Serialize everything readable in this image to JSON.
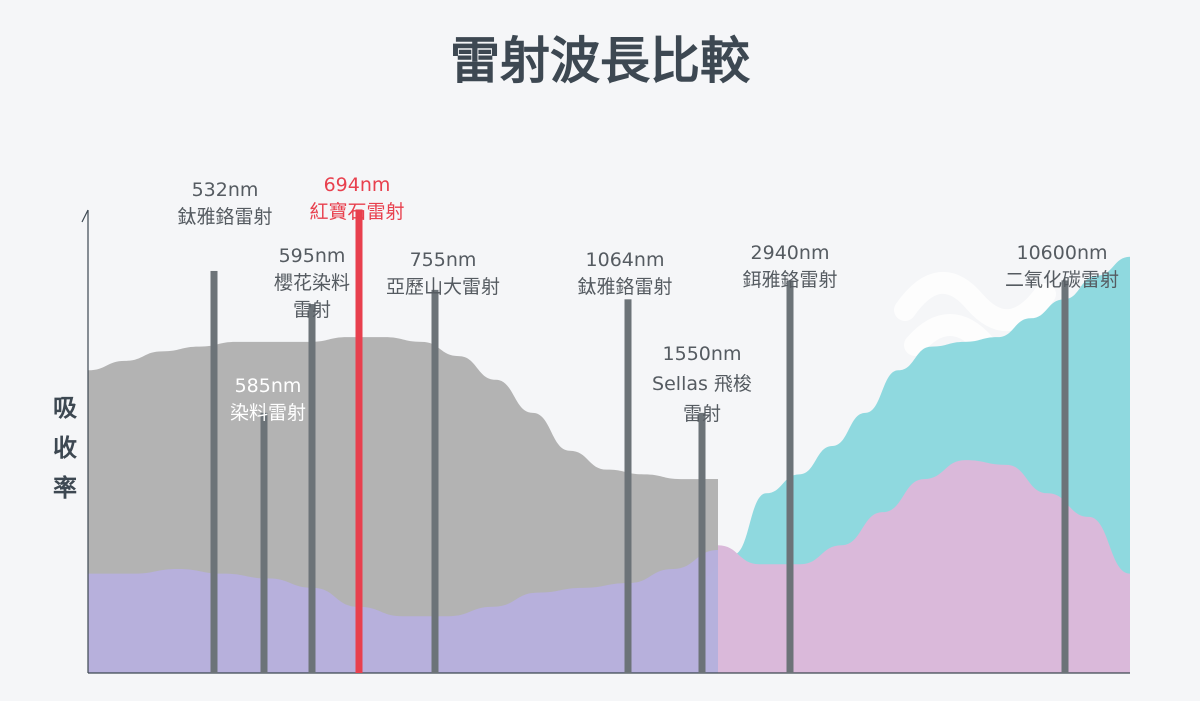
{
  "title": "雷射波長比較",
  "ylabel": "吸收率",
  "colors": {
    "background": "#f5f6f8",
    "title": "#3d4852",
    "label": "#555b61",
    "highlight": "#e8404e",
    "laser_bar": "#6c7378",
    "grey_band": "#b3b3b3",
    "purple_band": "#b7b0dd",
    "cyan_band": "#8fd9df",
    "pink_band": "#dab9da",
    "white_label": "#ffffff",
    "decor": "#ffffff"
  },
  "chart_data": {
    "type": "bar",
    "title": "雷射波長比較",
    "ylabel": "吸收率",
    "xlabel": "",
    "grid": false,
    "legend": "none",
    "lasers": [
      {
        "wavelength": "532nm",
        "name": "鈦雅鉻雷射",
        "height": 0.85,
        "label_style": "dark"
      },
      {
        "wavelength": "585nm",
        "name": "染料雷射",
        "height": 0.55,
        "label_style": "white"
      },
      {
        "wavelength": "595nm",
        "name": "櫻花染料 雷射",
        "height": 0.78,
        "label_style": "dark"
      },
      {
        "wavelength": "694nm",
        "name": "紅寶石雷射",
        "height": 0.98,
        "label_style": "highlight"
      },
      {
        "wavelength": "755nm",
        "name": "亞歷山大雷射",
        "height": 0.81,
        "label_style": "dark"
      },
      {
        "wavelength": "1064nm",
        "name": "鈦雅鉻雷射",
        "height": 0.79,
        "label_style": "dark"
      },
      {
        "wavelength": "1550nm",
        "name": "Sellas 飛梭 雷射",
        "height": 0.55,
        "label_style": "dark"
      },
      {
        "wavelength": "2940nm",
        "name": "鉺雅鉻雷射",
        "height": 0.83,
        "label_style": "dark"
      },
      {
        "wavelength": "10600nm",
        "name": "二氧化碳雷射",
        "height": 0.83,
        "label_style": "dark"
      }
    ],
    "bands": [
      {
        "key": "grey_band",
        "profile": [
          0.64,
          0.66,
          0.68,
          0.69,
          0.7,
          0.7,
          0.7,
          0.71,
          0.71,
          0.7,
          0.67,
          0.62,
          0.55,
          0.47,
          0.43,
          0.42,
          0.41,
          0.41
        ]
      },
      {
        "key": "cyan_band",
        "profile": [
          0.2,
          0.25,
          0.38,
          0.42,
          0.48,
          0.55,
          0.64,
          0.69,
          0.7,
          0.71,
          0.75,
          0.79,
          0.84,
          0.88
        ]
      },
      {
        "key": "purple_band",
        "profile": [
          0.21,
          0.21,
          0.22,
          0.21,
          0.2,
          0.18,
          0.14,
          0.12,
          0.12,
          0.14,
          0.17,
          0.18,
          0.19,
          0.22,
          0.26
        ]
      },
      {
        "key": "pink_band",
        "profile": [
          0.27,
          0.23,
          0.23,
          0.27,
          0.34,
          0.41,
          0.45,
          0.44,
          0.38,
          0.33,
          0.21
        ]
      }
    ]
  }
}
